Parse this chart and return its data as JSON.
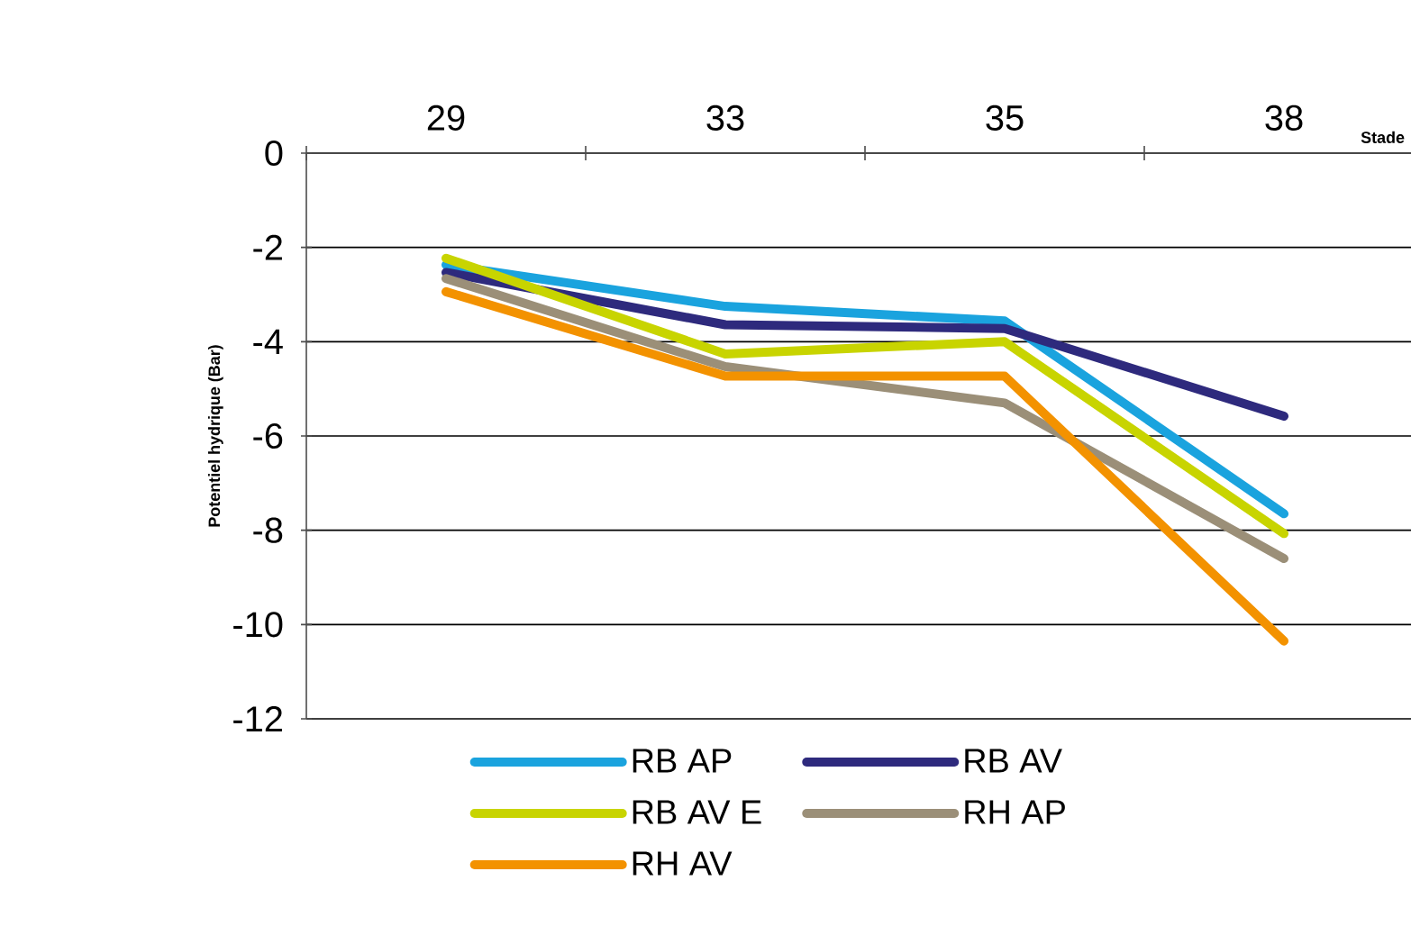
{
  "chart_data": {
    "type": "line",
    "xlabel": "Stade",
    "ylabel": "Potentiel hydrique (Bar)",
    "categories": [
      "29",
      "33",
      "35",
      "38"
    ],
    "ylim": [
      -12,
      0
    ],
    "yticks": [
      -12,
      -10,
      -8,
      -6,
      -4,
      -2,
      0
    ],
    "grid": "y",
    "legend": "bottom",
    "marker": "none",
    "line_style": "solid",
    "series": [
      {
        "name": "RB AP",
        "color": "#1aa3de",
        "values": [
          -2.37,
          -3.25,
          -3.56,
          -7.65
        ]
      },
      {
        "name": "RB AV",
        "color": "#2e2a7d",
        "values": [
          -2.53,
          -3.64,
          -3.72,
          -5.58
        ]
      },
      {
        "name": "RB AV E",
        "color": "#c8d400",
        "values": [
          -2.23,
          -4.26,
          -4.0,
          -8.07
        ]
      },
      {
        "name": "RH AP",
        "color": "#9b8f78",
        "values": [
          -2.66,
          -4.53,
          -5.3,
          -8.6
        ]
      },
      {
        "name": "RH AV",
        "color": "#f39200",
        "values": [
          -2.94,
          -4.73,
          -4.73,
          -10.35
        ]
      }
    ]
  }
}
